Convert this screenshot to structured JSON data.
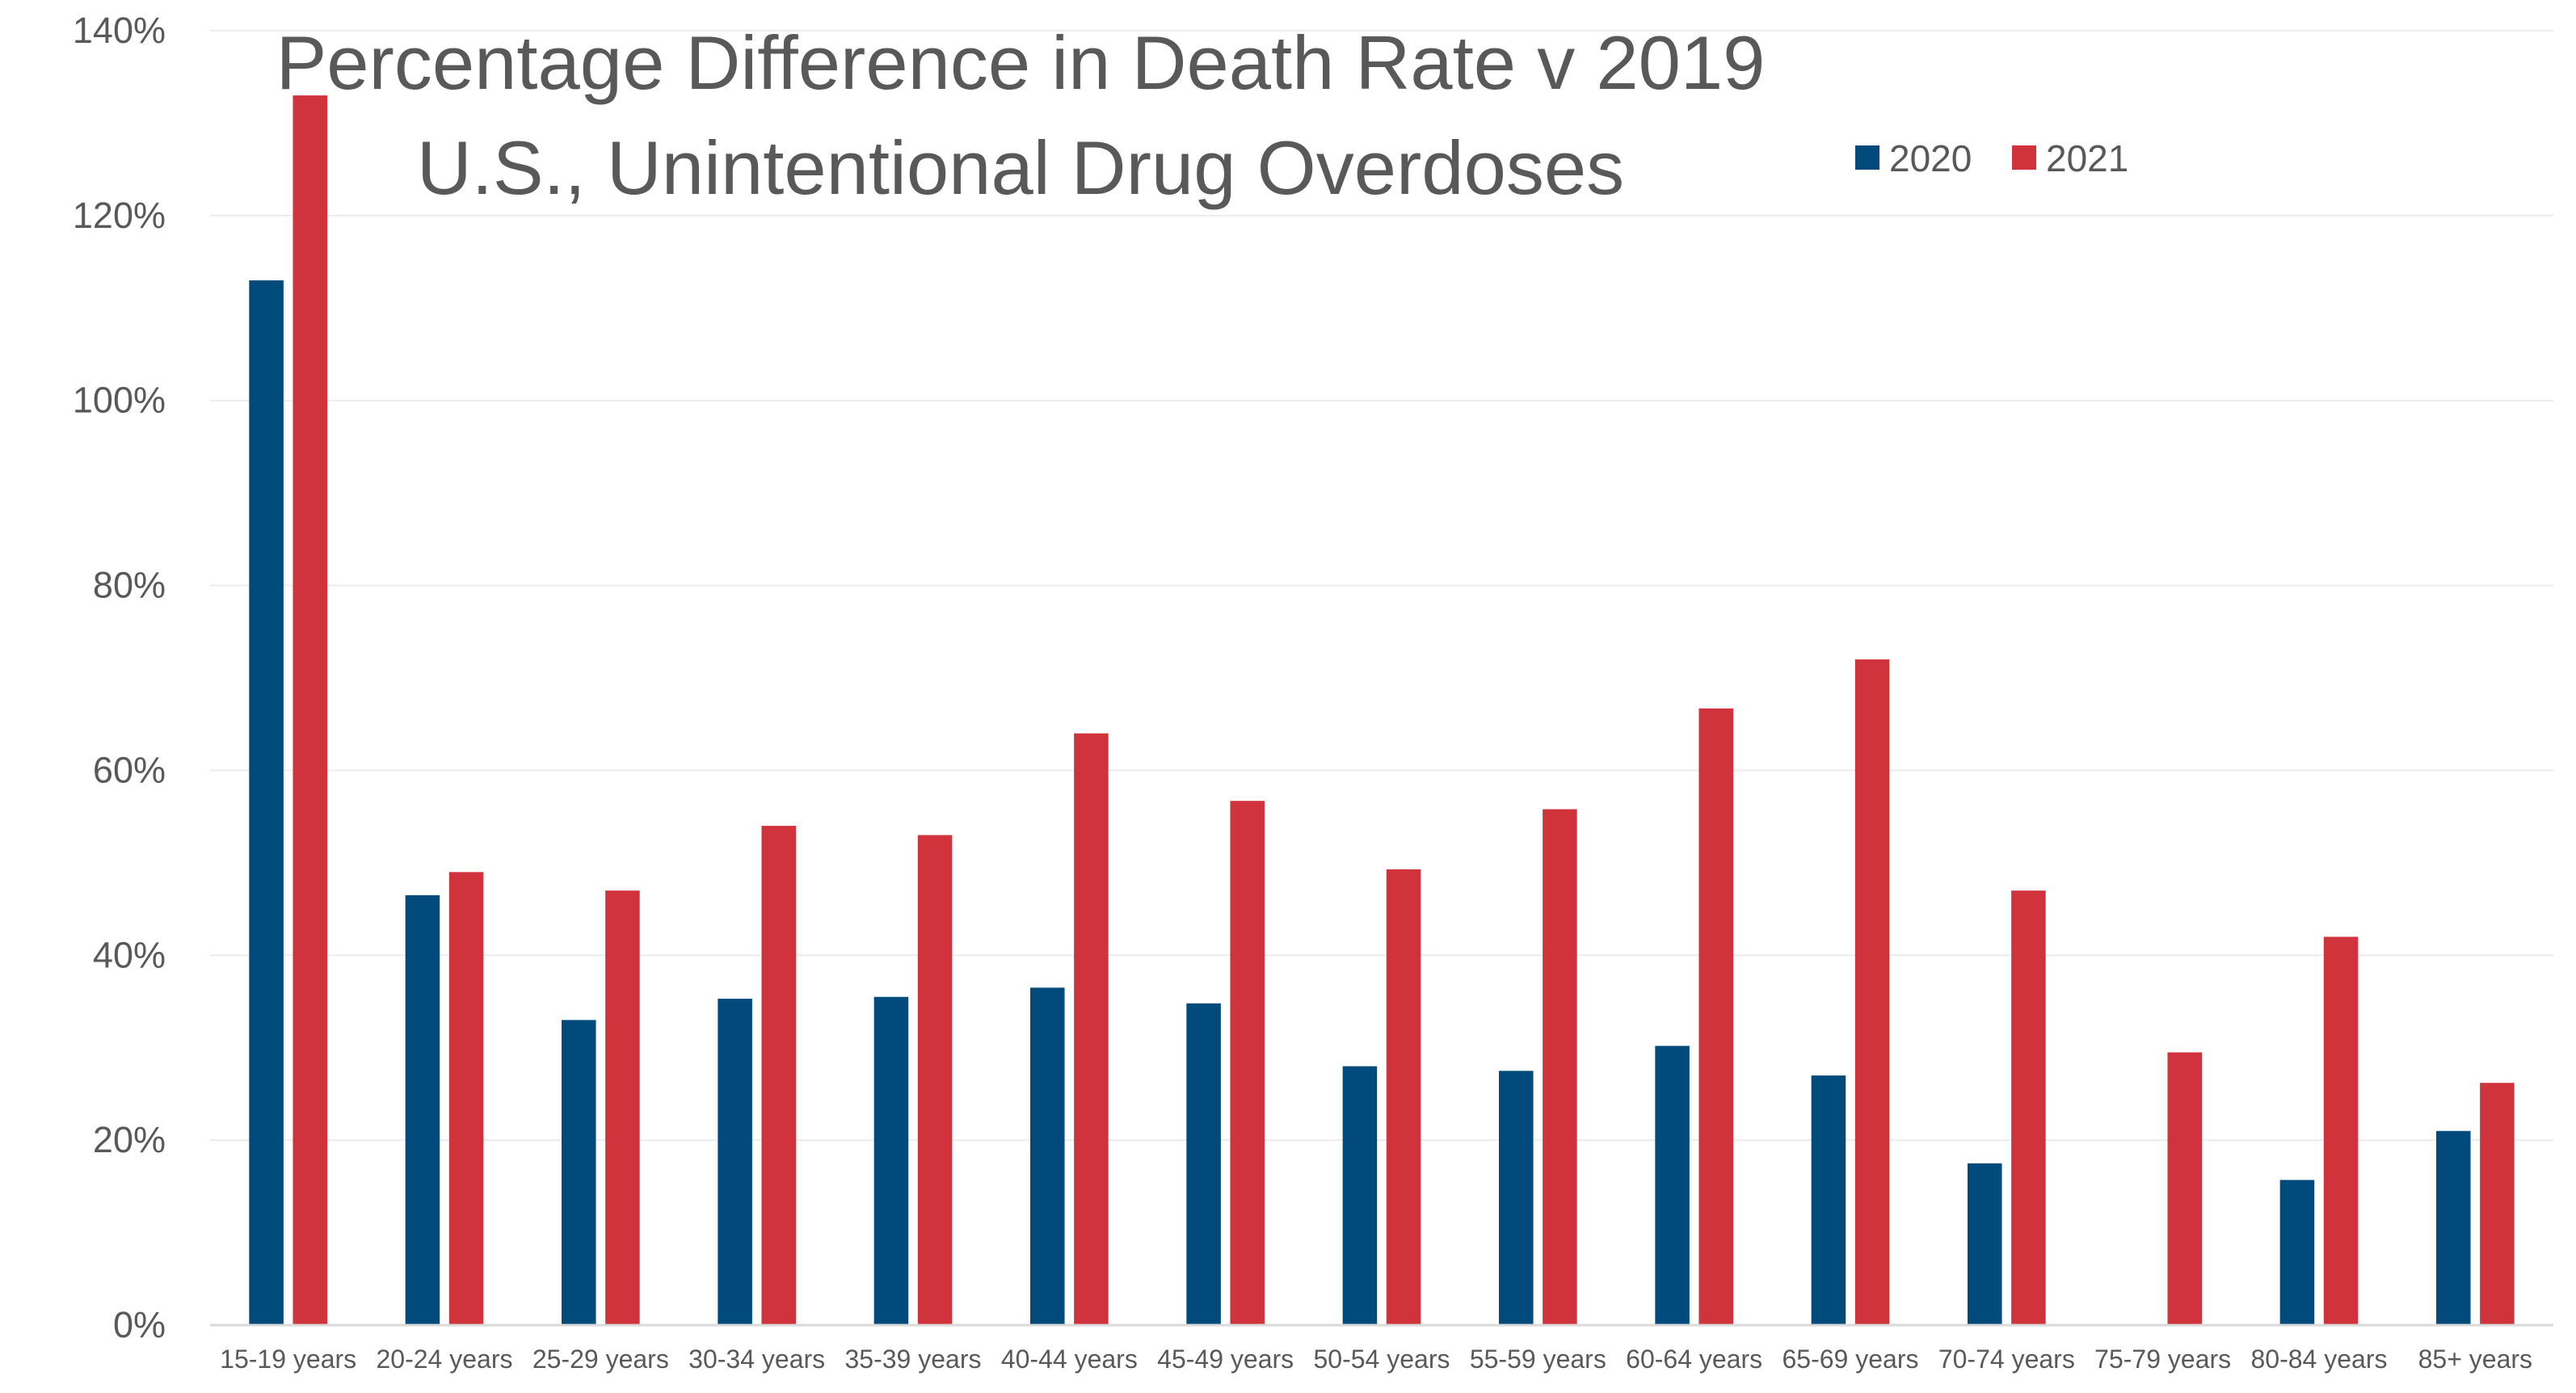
{
  "chart_data": {
    "type": "bar",
    "title": "Percentage Difference in Death Rate v 2019",
    "subtitle": "U.S., Unintentional Drug Overdoses",
    "xlabel": "",
    "ylabel": "",
    "ylim": [
      0,
      140
    ],
    "y_unit": "%",
    "y_ticks": [
      "0%",
      "20%",
      "40%",
      "60%",
      "80%",
      "100%",
      "120%",
      "140%"
    ],
    "grid": "horizontal",
    "legend_position": "top-right",
    "categories": [
      "15-19 years",
      "20-24 years",
      "25-29 years",
      "30-34 years",
      "35-39 years",
      "40-44 years",
      "45-49 years",
      "50-54 years",
      "55-59 years",
      "60-64 years",
      "65-69 years",
      "70-74 years",
      "75-79 years",
      "80-84 years",
      "85+ years"
    ],
    "series": [
      {
        "name": "2020",
        "color": "#004a7c",
        "values": [
          113,
          46.5,
          33,
          35.3,
          35.5,
          36.5,
          34.8,
          28,
          27.5,
          30.2,
          27,
          17.5,
          null,
          15.7,
          21
        ]
      },
      {
        "name": "2021",
        "color": "#d0333c",
        "values": [
          133,
          49,
          47,
          54,
          53,
          64,
          56.7,
          49.3,
          55.8,
          66.7,
          72,
          47,
          29.5,
          42,
          26.2
        ]
      }
    ]
  }
}
